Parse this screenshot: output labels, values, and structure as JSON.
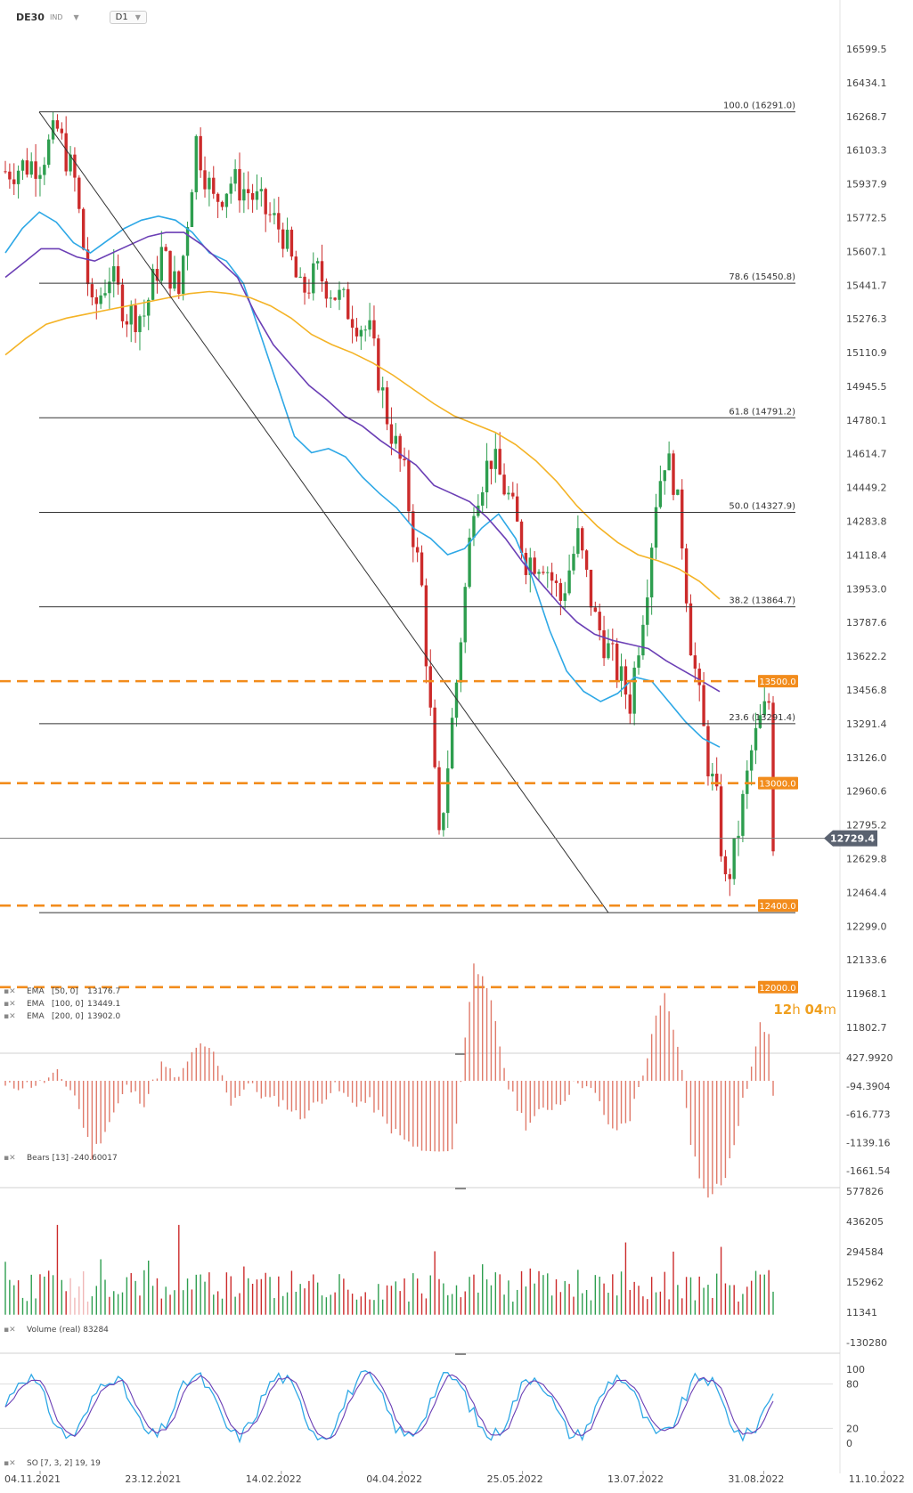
{
  "header": {
    "symbol": "DE30",
    "class": "IND",
    "timeframe": "D1"
  },
  "countdown": {
    "hours": "12",
    "h_unit": "h",
    "minutes": "04",
    "m_unit": "m"
  },
  "colors": {
    "bull": "#2e9e4f",
    "bear": "#cc2b2b",
    "ema50": "#2ea8e6",
    "ema100": "#6b3fb5",
    "ema200": "#f4b326",
    "level": "#f28c1c"
  },
  "chart_data": [
    {
      "type": "candlestick",
      "title": "DE30",
      "x_tick_labels": [
        "04.11.2021",
        "23.12.2021",
        "14.02.2022",
        "04.04.2022",
        "25.05.2022",
        "13.07.2022",
        "31.08.2022",
        "11.10.2022"
      ],
      "y_tick_labels": [
        "16599.5",
        "16434.1",
        "16268.7",
        "16103.3",
        "15937.9",
        "15772.5",
        "15607.1",
        "15441.7",
        "15276.3",
        "15110.9",
        "14945.5",
        "14780.1",
        "14614.7",
        "14449.2",
        "14283.8",
        "14118.4",
        "13953.0",
        "13787.6",
        "13622.2",
        "13456.8",
        "13291.4",
        "13126.0",
        "12960.6",
        "12795.2",
        "12629.8",
        "12464.4",
        "12299.0",
        "12133.6",
        "11968.1",
        "11802.7"
      ],
      "ylim": [
        11802.7,
        16599.5
      ],
      "last_price": "12729.4",
      "fibonacci": [
        {
          "label": "100.0 (16291.0)",
          "value": 16291.0
        },
        {
          "label": "78.6 (15450.8)",
          "value": 15450.8
        },
        {
          "label": "61.8 (14791.2)",
          "value": 14791.2
        },
        {
          "label": "50.0 (14327.9)",
          "value": 14327.9
        },
        {
          "label": "38.2 (13864.7)",
          "value": 13864.7
        },
        {
          "label": "23.6 (13291.4)",
          "value": 13291.4
        },
        {
          "label": "0.0 (",
          "value": 12365.0
        }
      ],
      "levels": [
        {
          "label": "13500.0",
          "value": 13500.0
        },
        {
          "label": "13000.0",
          "value": 13000.0
        },
        {
          "label": "12400.0",
          "value": 12400.0
        },
        {
          "label": "12000.0",
          "value": 12000.0
        }
      ],
      "legend": [
        {
          "name": "EMA",
          "params": "[50, 0]",
          "value": "13176.7"
        },
        {
          "name": "EMA",
          "params": "[100, 0]",
          "value": "13449.1"
        },
        {
          "name": "EMA",
          "params": "[200, 0]",
          "value": "13902.0"
        }
      ],
      "series": [
        {
          "name": "EMA [50, 0]",
          "values": [
            15600,
            15720,
            15800,
            15750,
            15650,
            15600,
            15660,
            15720,
            15760,
            15780,
            15760,
            15700,
            15600,
            15560,
            15450,
            15200,
            14950,
            14700,
            14620,
            14640,
            14600,
            14500,
            14420,
            14350,
            14250,
            14200,
            14120,
            14150,
            14250,
            14320,
            14200,
            14000,
            13750,
            13550,
            13450,
            13400,
            13440,
            13520,
            13500,
            13400,
            13300,
            13220,
            13176.7
          ]
        },
        {
          "name": "EMA [100, 0]",
          "values": [
            15480,
            15550,
            15620,
            15620,
            15580,
            15560,
            15600,
            15640,
            15680,
            15700,
            15700,
            15640,
            15560,
            15480,
            15300,
            15150,
            15050,
            14950,
            14880,
            14800,
            14750,
            14680,
            14620,
            14560,
            14460,
            14420,
            14380,
            14300,
            14200,
            14080,
            13980,
            13880,
            13790,
            13730,
            13700,
            13680,
            13660,
            13600,
            13550,
            13500,
            13449.1
          ]
        },
        {
          "name": "EMA [200, 0]",
          "values": [
            15100,
            15180,
            15250,
            15280,
            15300,
            15320,
            15340,
            15360,
            15380,
            15400,
            15410,
            15400,
            15380,
            15340,
            15280,
            15200,
            15150,
            15110,
            15060,
            15000,
            14930,
            14860,
            14800,
            14760,
            14720,
            14660,
            14580,
            14480,
            14360,
            14260,
            14180,
            14120,
            14090,
            14050,
            13990,
            13902.0
          ]
        }
      ]
    },
    {
      "type": "bar",
      "title": "Bears",
      "legend": "Bears  [13]  -240.60017",
      "y_tick_labels": [
        "427.9920",
        "-94.3904",
        "-616.773",
        "-1139.16",
        "-1661.54"
      ],
      "ylim": [
        -1661.54,
        427.992
      ]
    },
    {
      "type": "bar",
      "title": "Volume",
      "legend": "Volume  (real)  83284",
      "y_tick_labels": [
        "577826",
        "436205",
        "294584",
        "152962",
        "11341",
        "-130280"
      ],
      "ylim": [
        -130280,
        577826
      ]
    },
    {
      "type": "line",
      "title": "SO",
      "legend": "SO [7, 3, 2]  19, 19",
      "y_tick_labels": [
        "100",
        "80",
        "20",
        "0"
      ],
      "ylim": [
        0,
        100
      ]
    }
  ]
}
